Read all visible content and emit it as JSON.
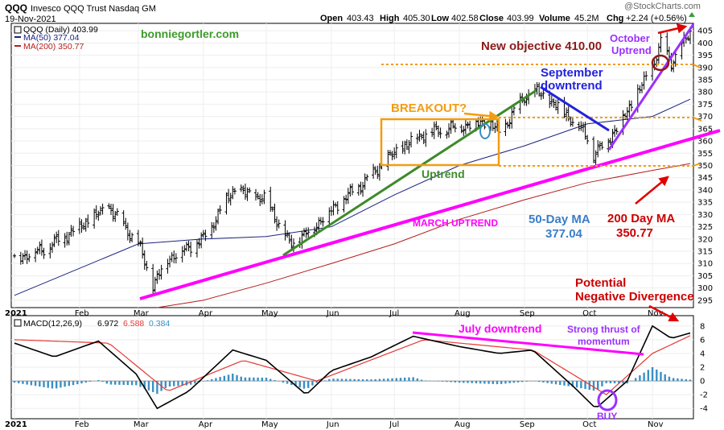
{
  "header": {
    "symbol": "QQQ",
    "name": "Invesco QQQ Trust Nasdaq GM",
    "date": "19-Nov-2021",
    "open_label": "Open",
    "open": "403.43",
    "high_label": "High",
    "high": "405.30",
    "low_label": "Low",
    "low": "402.58",
    "close_label": "Close",
    "close": "403.99",
    "volume_label": "Volume",
    "volume": "45.2M",
    "chg_label": "Chg",
    "chg": "+2.24 (+0.56%)",
    "watermark": "@StockCharts.com",
    "site": "bonniegortler.com"
  },
  "legend": {
    "price": "QQQ (Daily) 403.99",
    "ma50": "MA(50) 377.04",
    "ma200": "MA(200) 350.77"
  },
  "annotations": {
    "new_objective": "New objective 410.00",
    "october_uptrend_1": "October",
    "october_uptrend_2": "Uptrend",
    "september_1": "September",
    "september_2": "downtrend",
    "breakout": "BREAKOUT?",
    "uptrend": "Uptrend",
    "march_uptrend": "MARCH UPTREND",
    "ma50_1": "50-Day MA",
    "ma50_2": "377.04",
    "ma200_1": "200 Day MA",
    "ma200_2": "350.77",
    "potential_1": "Potential",
    "potential_2": "Negative Divergence",
    "july_downtrend": "July downtrend",
    "thrust_1": "Strong thrust of",
    "thrust_2": "momentum",
    "buy": "BUY"
  },
  "macd_legend": {
    "label": "MACD(12,26,9)",
    "v1": "6.972",
    "v2": "6.588",
    "v3": "0.384"
  },
  "colors": {
    "price": "#000000",
    "ma50": "#1a237e",
    "ma200": "#b71c1c",
    "macd": "#000000",
    "signal": "#e53935",
    "histogram": "#3a8fc4",
    "magenta": "#ff00ff",
    "green": "#3d8b2a",
    "orange": "#f39c12",
    "blue": "#2222dd",
    "purple": "#9b30ff",
    "red": "#cc0000",
    "site": "#3d9b2a",
    "objective": "#8b1a1a"
  },
  "chart_data": {
    "type": "line",
    "x_ticks": [
      "2021",
      "Feb",
      "Mar",
      "Apr",
      "May",
      "Jun",
      "Jul",
      "Aug",
      "Sep",
      "Oct",
      "Nov"
    ],
    "price_axis": {
      "ylim": [
        292,
        408
      ],
      "ticks": [
        295,
        300,
        305,
        310,
        315,
        320,
        325,
        330,
        335,
        340,
        345,
        350,
        355,
        360,
        365,
        370,
        375,
        380,
        385,
        390,
        395,
        400,
        405
      ]
    },
    "macd_axis": {
      "ylim": [
        -5.5,
        9.5
      ],
      "ticks": [
        -4,
        -2,
        0,
        2,
        4,
        6,
        8
      ]
    },
    "series": [
      {
        "name": "QQQ (Daily)",
        "x": [
          "Jan 1",
          "Jan 15",
          "Feb 1",
          "Feb 15",
          "Mar 1",
          "Mar 8",
          "Mar 15",
          "Apr 1",
          "Apr 15",
          "May 1",
          "May 12",
          "May 20",
          "Jun 1",
          "Jun 15",
          "Jul 1",
          "Jul 15",
          "Aug 1",
          "Aug 15",
          "Aug 20",
          "Sep 1",
          "Sep 7",
          "Sep 20",
          "Oct 1",
          "Oct 4",
          "Oct 15",
          "Nov 1",
          "Nov 5",
          "Nov 10",
          "Nov 19"
        ],
        "y": [
          312,
          316,
          325,
          333,
          318,
          301,
          312,
          320,
          340,
          336,
          318,
          322,
          332,
          342,
          355,
          363,
          366,
          368,
          363,
          378,
          380,
          372,
          362,
          354,
          365,
          390,
          400,
          392,
          404
        ]
      },
      {
        "name": "MA(50)",
        "x": [
          "Jan 1",
          "Mar 1",
          "Apr 1",
          "May 1",
          "Jun 1",
          "Jul 1",
          "Aug 1",
          "Sep 1",
          "Oct 1",
          "Nov 1",
          "Nov 19"
        ],
        "y": [
          297,
          318,
          320,
          321,
          325,
          338,
          350,
          358,
          367,
          370,
          377.04
        ]
      },
      {
        "name": "MA(200)",
        "x": [
          "Mar 10",
          "Apr 1",
          "May 1",
          "Jun 1",
          "Jul 1",
          "Aug 1",
          "Sep 1",
          "Oct 1",
          "Nov 1",
          "Nov 19"
        ],
        "y": [
          292,
          295,
          302,
          310,
          318,
          328,
          336,
          343,
          348,
          350.77
        ]
      },
      {
        "name": "MACD",
        "x": [
          "Jan 1",
          "Jan 20",
          "Feb 10",
          "Feb 28",
          "Mar 10",
          "Mar 25",
          "Apr 15",
          "May 1",
          "May 20",
          "Jun 1",
          "Jun 20",
          "Jul 10",
          "Aug 1",
          "Aug 20",
          "Sep 5",
          "Sep 25",
          "Oct 5",
          "Oct 20",
          "Nov 1",
          "Nov 10",
          "Nov 19"
        ],
        "y": [
          5.5,
          3.5,
          5.8,
          1,
          -4,
          -1.5,
          4.5,
          3,
          -2,
          1.5,
          3.5,
          6.5,
          5,
          4,
          4.5,
          -1,
          -4,
          0,
          8,
          6.2,
          6.972
        ]
      },
      {
        "name": "Signal",
        "x": [
          "Jan 1",
          "Feb 15",
          "Mar 15",
          "Apr 20",
          "May 25",
          "Jul 15",
          "Sep 5",
          "Oct 10",
          "Nov 1",
          "Nov 19"
        ],
        "y": [
          6,
          5.5,
          -1.5,
          3,
          0,
          6,
          4.5,
          -2,
          4,
          6.588
        ]
      }
    ]
  }
}
